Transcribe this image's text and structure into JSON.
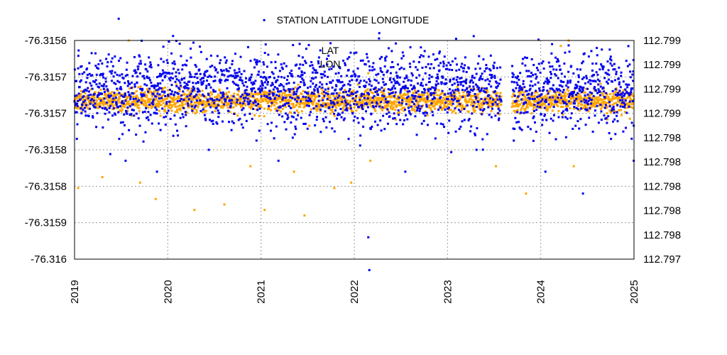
{
  "chart_data": {
    "type": "scatter",
    "title": "STATION LATITUDE LONGITUDE",
    "xlabel": "",
    "ylabel": "",
    "x_range": [
      "2019-01-01",
      "2025-01-01"
    ],
    "x_ticks": [
      "2019",
      "2020",
      "2021",
      "2022",
      "2023",
      "2024",
      "2025"
    ],
    "ylim_left": [
      -76.316,
      -76.3156
    ],
    "ylim_right": [
      112.797,
      112.799
    ],
    "y_ticks_left": [
      "-76.3156",
      "-76.3157",
      "-76.3157",
      "-76.3158",
      "-76.3158",
      "-76.3159",
      "-76.316"
    ],
    "y_ticks_right": [
      "112.799",
      "112.799",
      "112.799",
      "112.799",
      "112.798",
      "112.798",
      "112.798",
      "112.798",
      "112.798",
      "112.797"
    ],
    "grid": true,
    "legend_position": "top-center",
    "data_gap": [
      "2023-08-01",
      "2023-09-10"
    ],
    "series": [
      {
        "name": "LAT",
        "axis": "left",
        "color": "#ffa500",
        "marker": "square",
        "typical_range": [
          -76.31573,
          -76.31569
        ],
        "outliers": [
          {
            "x": "2019-08-01",
            "y": -76.3156
          },
          {
            "x": "2019-01-15",
            "y": -76.31587
          },
          {
            "x": "2019-04-20",
            "y": -76.31585
          },
          {
            "x": "2019-09-15",
            "y": -76.31586
          },
          {
            "x": "2019-11-15",
            "y": -76.31589
          },
          {
            "x": "2020-04-15",
            "y": -76.31591
          },
          {
            "x": "2020-08-10",
            "y": -76.3159
          },
          {
            "x": "2020-11-20",
            "y": -76.31583
          },
          {
            "x": "2021-01-15",
            "y": -76.31591
          },
          {
            "x": "2021-05-10",
            "y": -76.31584
          },
          {
            "x": "2021-06-20",
            "y": -76.31592
          },
          {
            "x": "2021-10-15",
            "y": -76.31587
          },
          {
            "x": "2021-12-20",
            "y": -76.31586
          },
          {
            "x": "2022-02-25",
            "y": -76.31566
          },
          {
            "x": "2022-03-05",
            "y": -76.31582
          },
          {
            "x": "2023-07-10",
            "y": -76.31583
          },
          {
            "x": "2023-11-05",
            "y": -76.31588
          },
          {
            "x": "2024-03-20",
            "y": -76.31561
          },
          {
            "x": "2024-04-20",
            "y": -76.3156
          },
          {
            "x": "2024-05-10",
            "y": -76.31583
          }
        ]
      },
      {
        "name": "LON",
        "axis": "right",
        "color": "#0000ee",
        "marker": "square",
        "typical_range": [
          112.7982,
          112.7989
        ],
        "outliers": [
          {
            "x": "2019-01-10",
            "y": 112.7981
          },
          {
            "x": "2019-06-25",
            "y": 112.7981
          },
          {
            "x": "2019-07-20",
            "y": 112.7979
          },
          {
            "x": "2019-11-20",
            "y": 112.7978
          },
          {
            "x": "2020-06-10",
            "y": 112.798
          },
          {
            "x": "2021-03-10",
            "y": 112.7979
          },
          {
            "x": "2021-12-10",
            "y": 112.7981
          },
          {
            "x": "2022-02-25",
            "y": 112.7972
          },
          {
            "x": "2022-03-01",
            "y": 112.7969
          },
          {
            "x": "2022-07-20",
            "y": 112.7978
          },
          {
            "x": "2023-04-25",
            "y": 112.798
          },
          {
            "x": "2024-01-20",
            "y": 112.7978
          },
          {
            "x": "2024-06-15",
            "y": 112.7976
          },
          {
            "x": "2024-12-31",
            "y": 112.7979
          }
        ]
      }
    ]
  }
}
